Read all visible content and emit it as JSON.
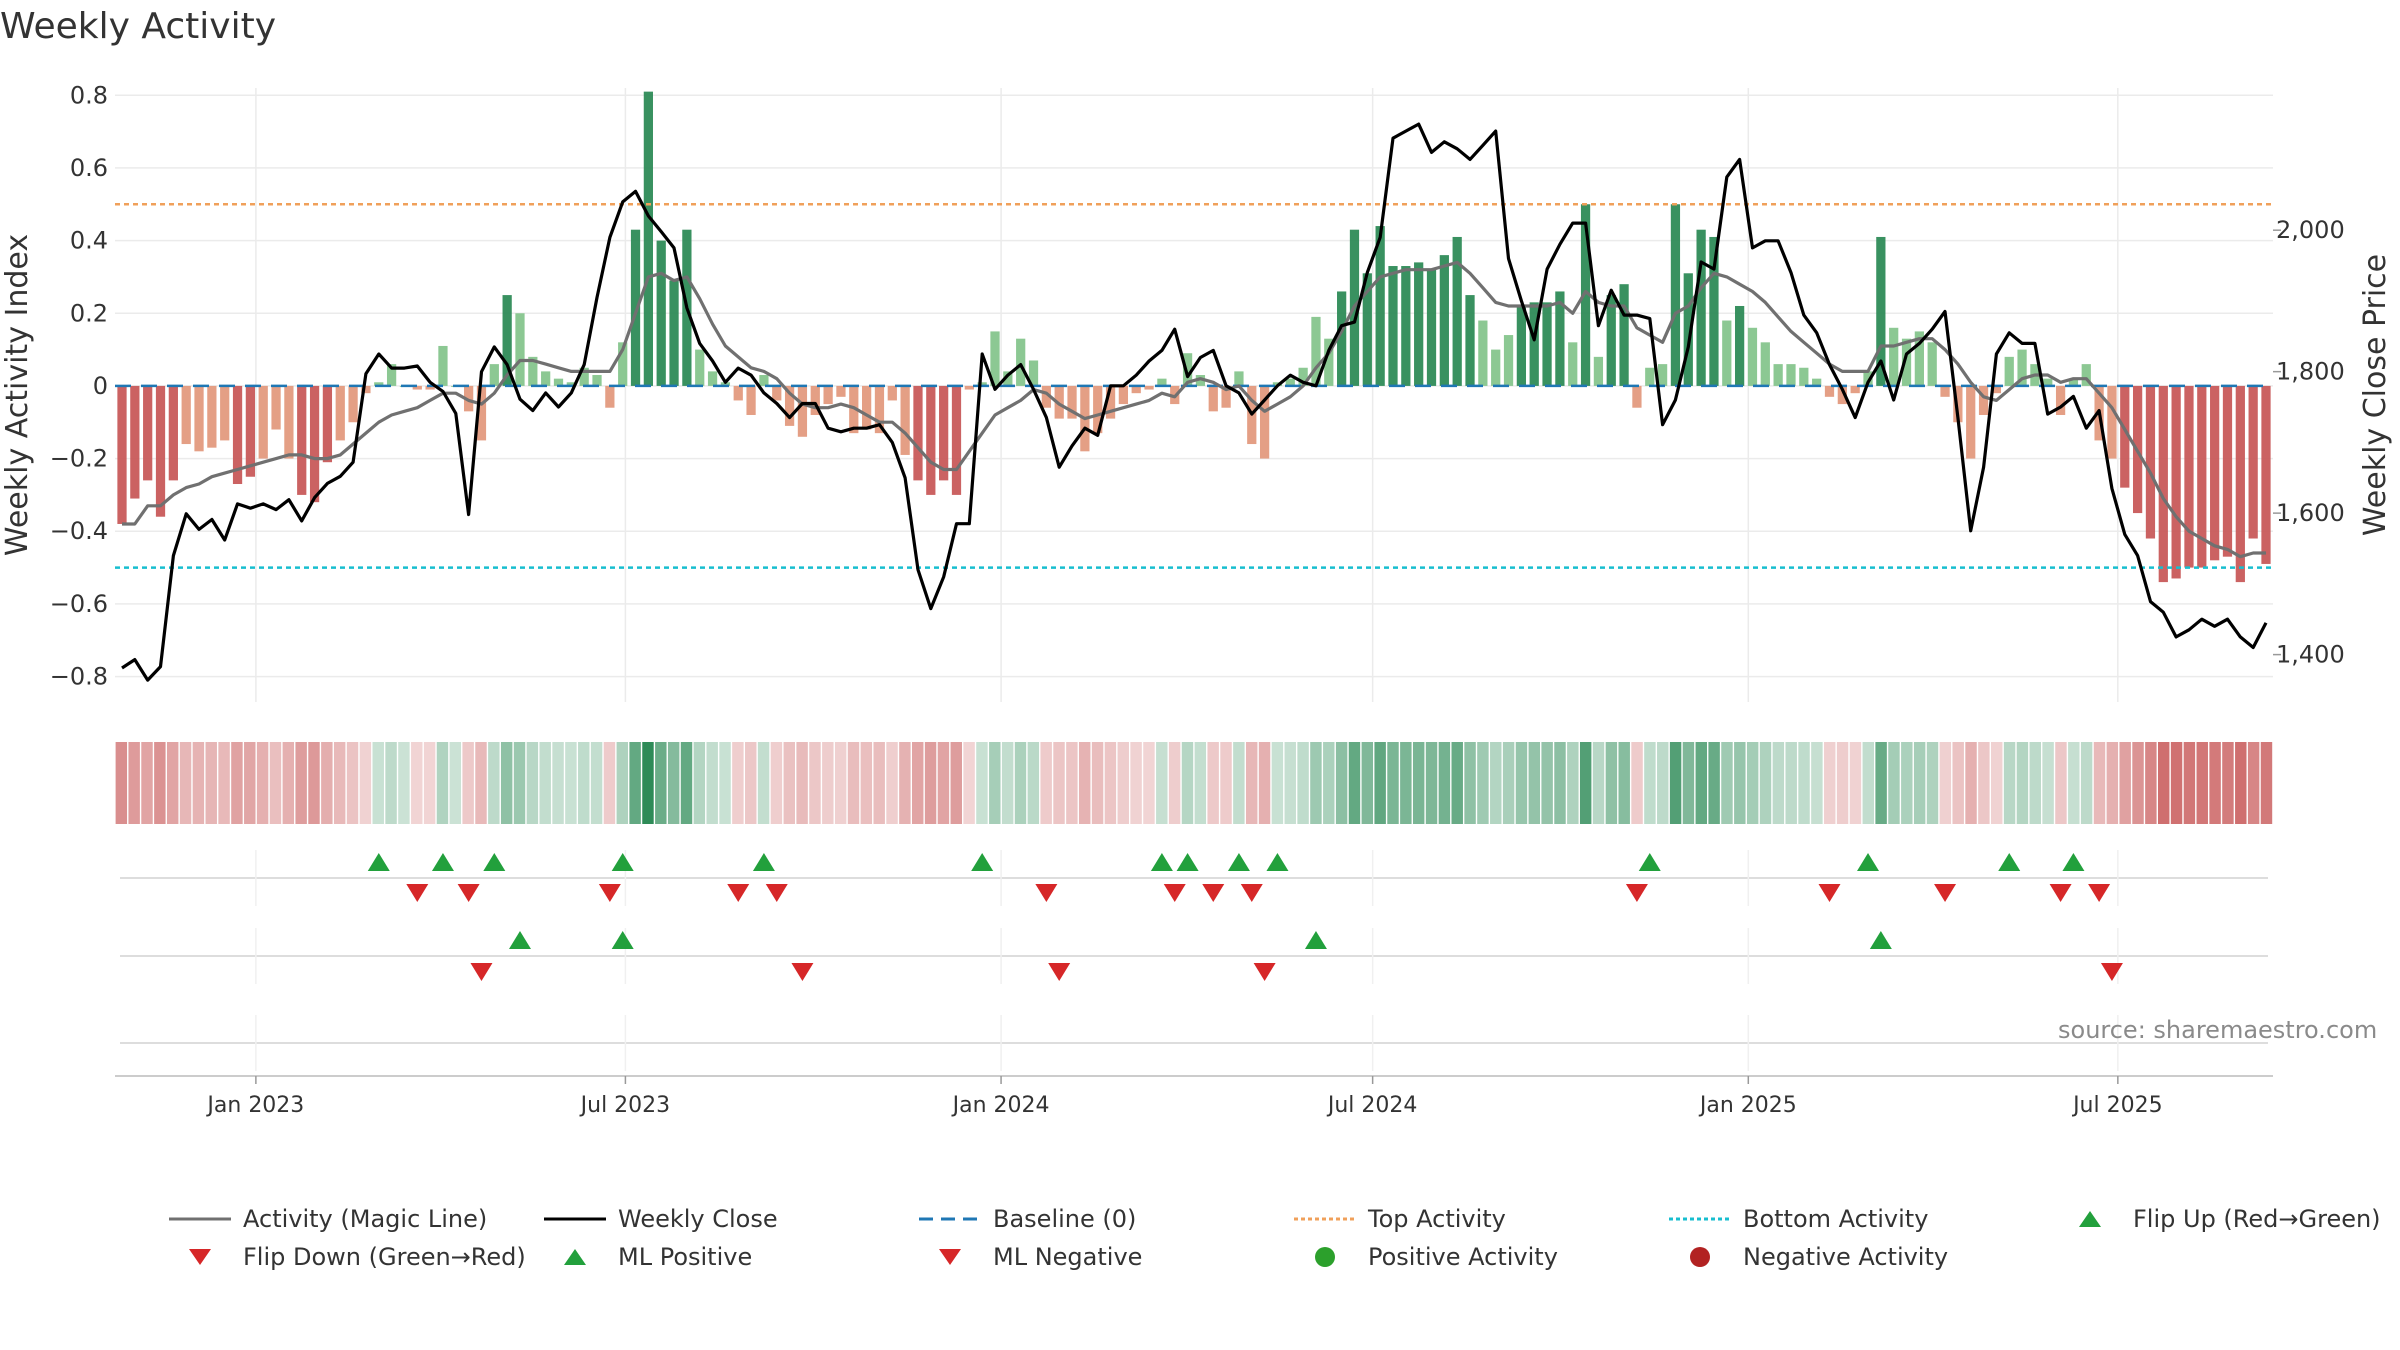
{
  "title": "Weekly Activity",
  "source_text": "source: sharemaestro.com",
  "colors": {
    "pos_strong": "#2e8b57",
    "pos_light": "#86c58d",
    "neg_strong": "#c85a5a",
    "neg_light": "#e39a7e",
    "magic": "#707070",
    "close": "#000000",
    "baseline": "#1f77b4",
    "top": "#f0a05a",
    "bottom": "#17becf",
    "flip_up": "#22a03c",
    "flip_down": "#d62728",
    "pos_dot": "#2ca02c",
    "neg_dot": "#b22222"
  },
  "legend": [
    {
      "label": "Activity (Magic Line)",
      "type": "line",
      "color": "#707070",
      "dash": ""
    },
    {
      "label": "Weekly Close",
      "type": "line",
      "color": "#000000",
      "dash": ""
    },
    {
      "label": "Baseline (0)",
      "type": "line",
      "color": "#1f77b4",
      "dash": "14,8"
    },
    {
      "label": "Top Activity",
      "type": "line",
      "color": "#f0a05a",
      "dash": "4,3"
    },
    {
      "label": "Bottom Activity",
      "type": "line",
      "color": "#17becf",
      "dash": "4,3"
    },
    {
      "label": "Flip Up (Red→Green)",
      "type": "tri_up",
      "color": "#22a03c"
    },
    {
      "label": "Flip Down (Green→Red)",
      "type": "tri_down",
      "color": "#d62728"
    },
    {
      "label": "ML Positive",
      "type": "tri_up",
      "color": "#22a03c"
    },
    {
      "label": "ML Negative",
      "type": "tri_down",
      "color": "#d62728"
    },
    {
      "label": "Positive Activity",
      "type": "dot",
      "color": "#2ca02c"
    },
    {
      "label": "Negative Activity",
      "type": "dot",
      "color": "#b22222"
    }
  ],
  "chart_data": {
    "type": "bar",
    "title": "Weekly Activity",
    "ylabel": "Weekly Activity Index",
    "y2label": "Weekly Close Price",
    "ylim": [
      -0.87,
      0.82
    ],
    "y2lim": [
      1333,
      2201
    ],
    "yticks": [
      0.8,
      0.6,
      0.4,
      0.2,
      0,
      -0.2,
      -0.4,
      -0.6,
      -0.8
    ],
    "ytick_labels": [
      "0.8",
      "0.6",
      "0.4",
      "0.2",
      "0",
      "−0.2",
      "−0.4",
      "−0.6",
      "−0.8"
    ],
    "y2ticks": [
      2000,
      1800,
      1600,
      1400
    ],
    "y2tick_labels": [
      "2,000",
      "1,800",
      "1,600",
      "1,400"
    ],
    "x_start": "2022-10-24",
    "x_end": "2025-09-15",
    "xtick_dates": [
      "2023-01-01",
      "2023-07-01",
      "2024-01-01",
      "2024-07-01",
      "2025-01-01",
      "2025-07-01"
    ],
    "xtick_labels": [
      "Jan 2023",
      "Jul 2023",
      "Jan 2024",
      "Jul 2024",
      "Jan 2025",
      "Jul 2025"
    ],
    "top_activity": 0.5,
    "bottom_activity": -0.5,
    "baseline": 0,
    "activity": [
      -0.38,
      -0.31,
      -0.26,
      -0.36,
      -0.26,
      -0.16,
      -0.18,
      -0.17,
      -0.15,
      -0.27,
      -0.25,
      -0.2,
      -0.12,
      -0.2,
      -0.3,
      -0.32,
      -0.21,
      -0.15,
      -0.1,
      -0.02,
      0.01,
      0.06,
      0,
      -0.01,
      -0.01,
      0.11,
      0,
      -0.07,
      -0.15,
      0.06,
      0.25,
      0.2,
      0.08,
      0.04,
      0.02,
      0.01,
      0.05,
      0.03,
      -0.06,
      0.12,
      0.43,
      0.81,
      0.4,
      0.29,
      0.43,
      0.1,
      0.04,
      0.01,
      -0.04,
      -0.08,
      0.03,
      -0.04,
      -0.11,
      -0.14,
      -0.08,
      -0.05,
      -0.03,
      -0.13,
      -0.12,
      -0.13,
      -0.04,
      -0.19,
      -0.26,
      -0.3,
      -0.26,
      -0.3,
      -0.01,
      0.01,
      0.15,
      0.04,
      0.13,
      0.07,
      -0.06,
      -0.09,
      -0.09,
      -0.18,
      -0.13,
      -0.09,
      -0.05,
      -0.02,
      -0.01,
      0.02,
      -0.05,
      0.09,
      0.03,
      -0.07,
      -0.06,
      0.04,
      -0.16,
      -0.2,
      0.01,
      0.02,
      0.05,
      0.19,
      0.13,
      0.26,
      0.43,
      0.31,
      0.44,
      0.33,
      0.33,
      0.34,
      0.32,
      0.36,
      0.41,
      0.25,
      0.18,
      0.1,
      0.14,
      0.22,
      0.23,
      0.23,
      0.26,
      0.12,
      0.5,
      0.08,
      0.25,
      0.28,
      -0.06,
      0.05,
      0.06,
      0.5,
      0.31,
      0.43,
      0.41,
      0.18,
      0.22,
      0.16,
      0.12,
      0.06,
      0.06,
      0.05,
      0.02,
      -0.03,
      -0.05,
      -0.02,
      0.04,
      0.41,
      0.16,
      0.13,
      0.15,
      0.12,
      -0.03,
      -0.1,
      -0.2,
      -0.08,
      -0.02,
      0.08,
      0.1,
      0.06,
      0.02,
      -0.08,
      0.02,
      0.06,
      -0.15,
      -0.2,
      -0.28,
      -0.35,
      -0.42,
      -0.54,
      -0.53,
      -0.5,
      -0.5,
      -0.48,
      -0.47,
      -0.54,
      -0.42,
      -0.49
    ],
    "magic_line": [
      -0.38,
      -0.38,
      -0.33,
      -0.33,
      -0.3,
      -0.28,
      -0.27,
      -0.25,
      -0.24,
      -0.23,
      -0.22,
      -0.21,
      -0.2,
      -0.19,
      -0.19,
      -0.2,
      -0.2,
      -0.19,
      -0.16,
      -0.13,
      -0.1,
      -0.08,
      -0.07,
      -0.06,
      -0.04,
      -0.02,
      -0.02,
      -0.04,
      -0.05,
      -0.02,
      0.03,
      0.07,
      0.07,
      0.06,
      0.05,
      0.04,
      0.04,
      0.04,
      0.04,
      0.1,
      0.2,
      0.3,
      0.31,
      0.29,
      0.3,
      0.24,
      0.17,
      0.11,
      0.08,
      0.05,
      0.04,
      0.02,
      -0.02,
      -0.05,
      -0.06,
      -0.06,
      -0.05,
      -0.06,
      -0.08,
      -0.1,
      -0.1,
      -0.13,
      -0.17,
      -0.21,
      -0.23,
      -0.23,
      -0.18,
      -0.13,
      -0.08,
      -0.06,
      -0.04,
      -0.01,
      -0.02,
      -0.05,
      -0.07,
      -0.09,
      -0.08,
      -0.07,
      -0.06,
      -0.05,
      -0.04,
      -0.02,
      -0.03,
      0.01,
      0.02,
      0.01,
      -0.01,
      0,
      -0.04,
      -0.07,
      -0.05,
      -0.03,
      0,
      0.05,
      0.09,
      0.15,
      0.22,
      0.26,
      0.3,
      0.31,
      0.32,
      0.32,
      0.32,
      0.33,
      0.34,
      0.31,
      0.27,
      0.23,
      0.22,
      0.22,
      0.22,
      0.22,
      0.23,
      0.2,
      0.26,
      0.23,
      0.22,
      0.22,
      0.16,
      0.14,
      0.12,
      0.2,
      0.22,
      0.27,
      0.31,
      0.3,
      0.28,
      0.26,
      0.23,
      0.19,
      0.15,
      0.12,
      0.09,
      0.06,
      0.04,
      0.04,
      0.04,
      0.11,
      0.11,
      0.12,
      0.13,
      0.13,
      0.1,
      0.06,
      0.01,
      -0.03,
      -0.04,
      -0.01,
      0.02,
      0.03,
      0.03,
      0.01,
      0.02,
      0.02,
      -0.02,
      -0.06,
      -0.12,
      -0.18,
      -0.24,
      -0.31,
      -0.36,
      -0.4,
      -0.42,
      -0.44,
      -0.45,
      -0.47,
      -0.46,
      -0.46
    ],
    "weekly_close": [
      1381,
      1393,
      1364,
      1383,
      1540,
      1599,
      1577,
      1591,
      1562,
      1613,
      1607,
      1613,
      1605,
      1619,
      1589,
      1622,
      1642,
      1652,
      1672,
      1797,
      1825,
      1805,
      1805,
      1808,
      1785,
      1772,
      1741,
      1598,
      1800,
      1835,
      1810,
      1761,
      1745,
      1770,
      1750,
      1770,
      1810,
      1905,
      1990,
      2040,
      2055,
      2020,
      1998,
      1975,
      1890,
      1840,
      1815,
      1785,
      1805,
      1795,
      1770,
      1755,
      1735,
      1755,
      1755,
      1720,
      1715,
      1720,
      1720,
      1725,
      1700,
      1650,
      1520,
      1465,
      1510,
      1585,
      1585,
      1825,
      1775,
      1795,
      1810,
      1775,
      1735,
      1665,
      1695,
      1720,
      1710,
      1780,
      1780,
      1795,
      1815,
      1830,
      1860,
      1793,
      1820,
      1830,
      1780,
      1770,
      1740,
      1760,
      1780,
      1795,
      1785,
      1780,
      1830,
      1865,
      1870,
      1940,
      1990,
      2130,
      2140,
      2150,
      2110,
      2125,
      2115,
      2100,
      2120,
      2140,
      1960,
      1900,
      1845,
      1945,
      1980,
      2010,
      2010,
      1865,
      1915,
      1880,
      1880,
      1875,
      1725,
      1760,
      1835,
      1955,
      1945,
      2075,
      2100,
      1975,
      1985,
      1985,
      1940,
      1880,
      1855,
      1810,
      1775,
      1735,
      1785,
      1815,
      1760,
      1825,
      1840,
      1860,
      1885,
      1735,
      1575,
      1665,
      1825,
      1855,
      1840,
      1840,
      1740,
      1750,
      1765,
      1720,
      1745,
      1635,
      1570,
      1540,
      1475,
      1460,
      1425,
      1435,
      1450,
      1440,
      1450,
      1425,
      1410,
      1445
    ]
  }
}
